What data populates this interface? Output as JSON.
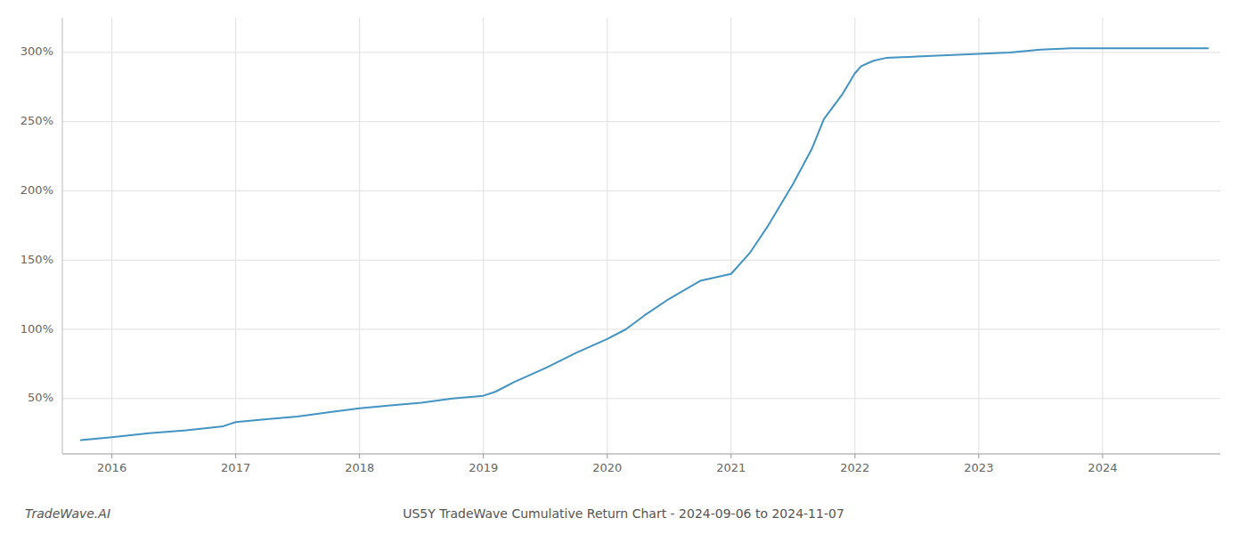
{
  "chart_data": {
    "type": "line",
    "title": "US5Y TradeWave Cumulative Return Chart - 2024-09-06 to 2024-11-07",
    "annotations": [
      "TradeWave.AI"
    ],
    "x": [
      2015.75,
      2016.0,
      2016.3,
      2016.6,
      2016.9,
      2017.0,
      2017.25,
      2017.5,
      2017.75,
      2018.0,
      2018.25,
      2018.5,
      2018.75,
      2019.0,
      2019.1,
      2019.25,
      2019.5,
      2019.75,
      2020.0,
      2020.15,
      2020.3,
      2020.5,
      2020.75,
      2021.0,
      2021.15,
      2021.3,
      2021.5,
      2021.65,
      2021.75,
      2021.9,
      2022.0,
      2022.05,
      2022.15,
      2022.25,
      2022.5,
      2022.75,
      2023.0,
      2023.25,
      2023.5,
      2023.75,
      2024.0,
      2024.25,
      2024.5,
      2024.75,
      2024.85
    ],
    "values": [
      20,
      22,
      25,
      27,
      30,
      33,
      35,
      37,
      40,
      43,
      45,
      47,
      50,
      52,
      55,
      62,
      72,
      83,
      93,
      100,
      110,
      122,
      135,
      140,
      155,
      175,
      205,
      230,
      252,
      270,
      285,
      290,
      294,
      296,
      297,
      298,
      299,
      300,
      302,
      303,
      303,
      303,
      303,
      303,
      303
    ],
    "color": "#4393c3",
    "xlim": [
      2015.6,
      2024.95
    ],
    "ylim": [
      10,
      325
    ],
    "xticks": [
      2016,
      2017,
      2018,
      2019,
      2020,
      2021,
      2022,
      2023,
      2024
    ],
    "yticks": [
      {
        "value": 50,
        "label": "50%"
      },
      {
        "value": 100,
        "label": "100%"
      },
      {
        "value": 150,
        "label": "150%"
      },
      {
        "value": 200,
        "label": "200%"
      },
      {
        "value": 250,
        "label": "250%"
      },
      {
        "value": 300,
        "label": "300%"
      }
    ],
    "grid": true
  }
}
